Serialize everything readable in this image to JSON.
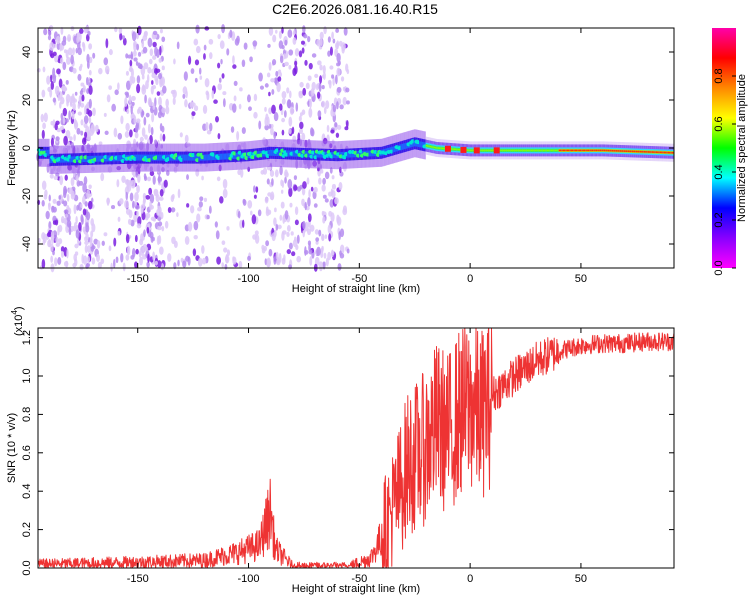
{
  "title": "C2E6.2026.081.16.40.R15",
  "chart_data": [
    {
      "type": "heatmap",
      "xlabel": "Height of straight line (km)",
      "ylabel": "Frequency (Hz)",
      "xlim": [
        -195,
        92
      ],
      "ylim": [
        -50,
        50
      ],
      "xticks": [
        -150,
        -100,
        -50,
        0,
        50
      ],
      "yticks": [
        -40,
        -20,
        0,
        20,
        40
      ],
      "colorbar": {
        "label": "Normalized spectral amplitude",
        "range": [
          0,
          1
        ],
        "ticks": [
          "0.0",
          "0.2",
          "0.4",
          "0.6",
          "0.8"
        ],
        "colors": [
          "#ff00ff",
          "#8800ff",
          "#0000ff",
          "#00ffff",
          "#00ff00",
          "#ffff00",
          "#ff8800",
          "#ff0000",
          "#ff00aa"
        ]
      },
      "center_line": [
        {
          "x": -190,
          "y": -5
        },
        {
          "x": -150,
          "y": -4
        },
        {
          "x": -120,
          "y": -4
        },
        {
          "x": -100,
          "y": -3
        },
        {
          "x": -90,
          "y": -2
        },
        {
          "x": -60,
          "y": -3
        },
        {
          "x": -40,
          "y": -2
        },
        {
          "x": -25,
          "y": 2
        },
        {
          "x": -15,
          "y": 0
        },
        {
          "x": 0,
          "y": -1
        },
        {
          "x": 30,
          "y": -1
        },
        {
          "x": 60,
          "y": -1
        },
        {
          "x": 92,
          "y": -2
        }
      ]
    },
    {
      "type": "line",
      "xlabel": "Height of straight line (km)",
      "ylabel": "SNR (10 * v/v)",
      "multiplier": "(x10",
      "multiplier_exp": "4",
      "xlim": [
        -195,
        92
      ],
      "ylim": [
        0,
        1.25
      ],
      "xticks": [
        -150,
        -100,
        -50,
        0,
        50
      ],
      "yticks": [
        "0.0",
        "0.2",
        "0.4",
        "0.6",
        "0.8",
        "1.0",
        "1.2"
      ],
      "series": [
        {
          "color": "#ee3333",
          "points": [
            [
              -195,
              0.02
            ],
            [
              -150,
              0.03
            ],
            [
              -120,
              0.04
            ],
            [
              -105,
              0.08
            ],
            [
              -95,
              0.12
            ],
            [
              -90,
              0.3
            ],
            [
              -88,
              0.1
            ],
            [
              -80,
              0.01
            ],
            [
              -55,
              0.01
            ],
            [
              -45,
              0.05
            ],
            [
              -38,
              0.2
            ],
            [
              -32,
              0.4
            ],
            [
              -28,
              0.55
            ],
            [
              -22,
              0.6
            ],
            [
              -15,
              0.75
            ],
            [
              -10,
              0.7
            ],
            [
              -5,
              0.8
            ],
            [
              0,
              0.85
            ],
            [
              5,
              0.8
            ],
            [
              10,
              0.9
            ],
            [
              20,
              1.0
            ],
            [
              30,
              1.08
            ],
            [
              40,
              1.13
            ],
            [
              50,
              1.16
            ],
            [
              60,
              1.17
            ],
            [
              70,
              1.17
            ],
            [
              80,
              1.18
            ],
            [
              92,
              1.18
            ]
          ]
        }
      ]
    }
  ]
}
